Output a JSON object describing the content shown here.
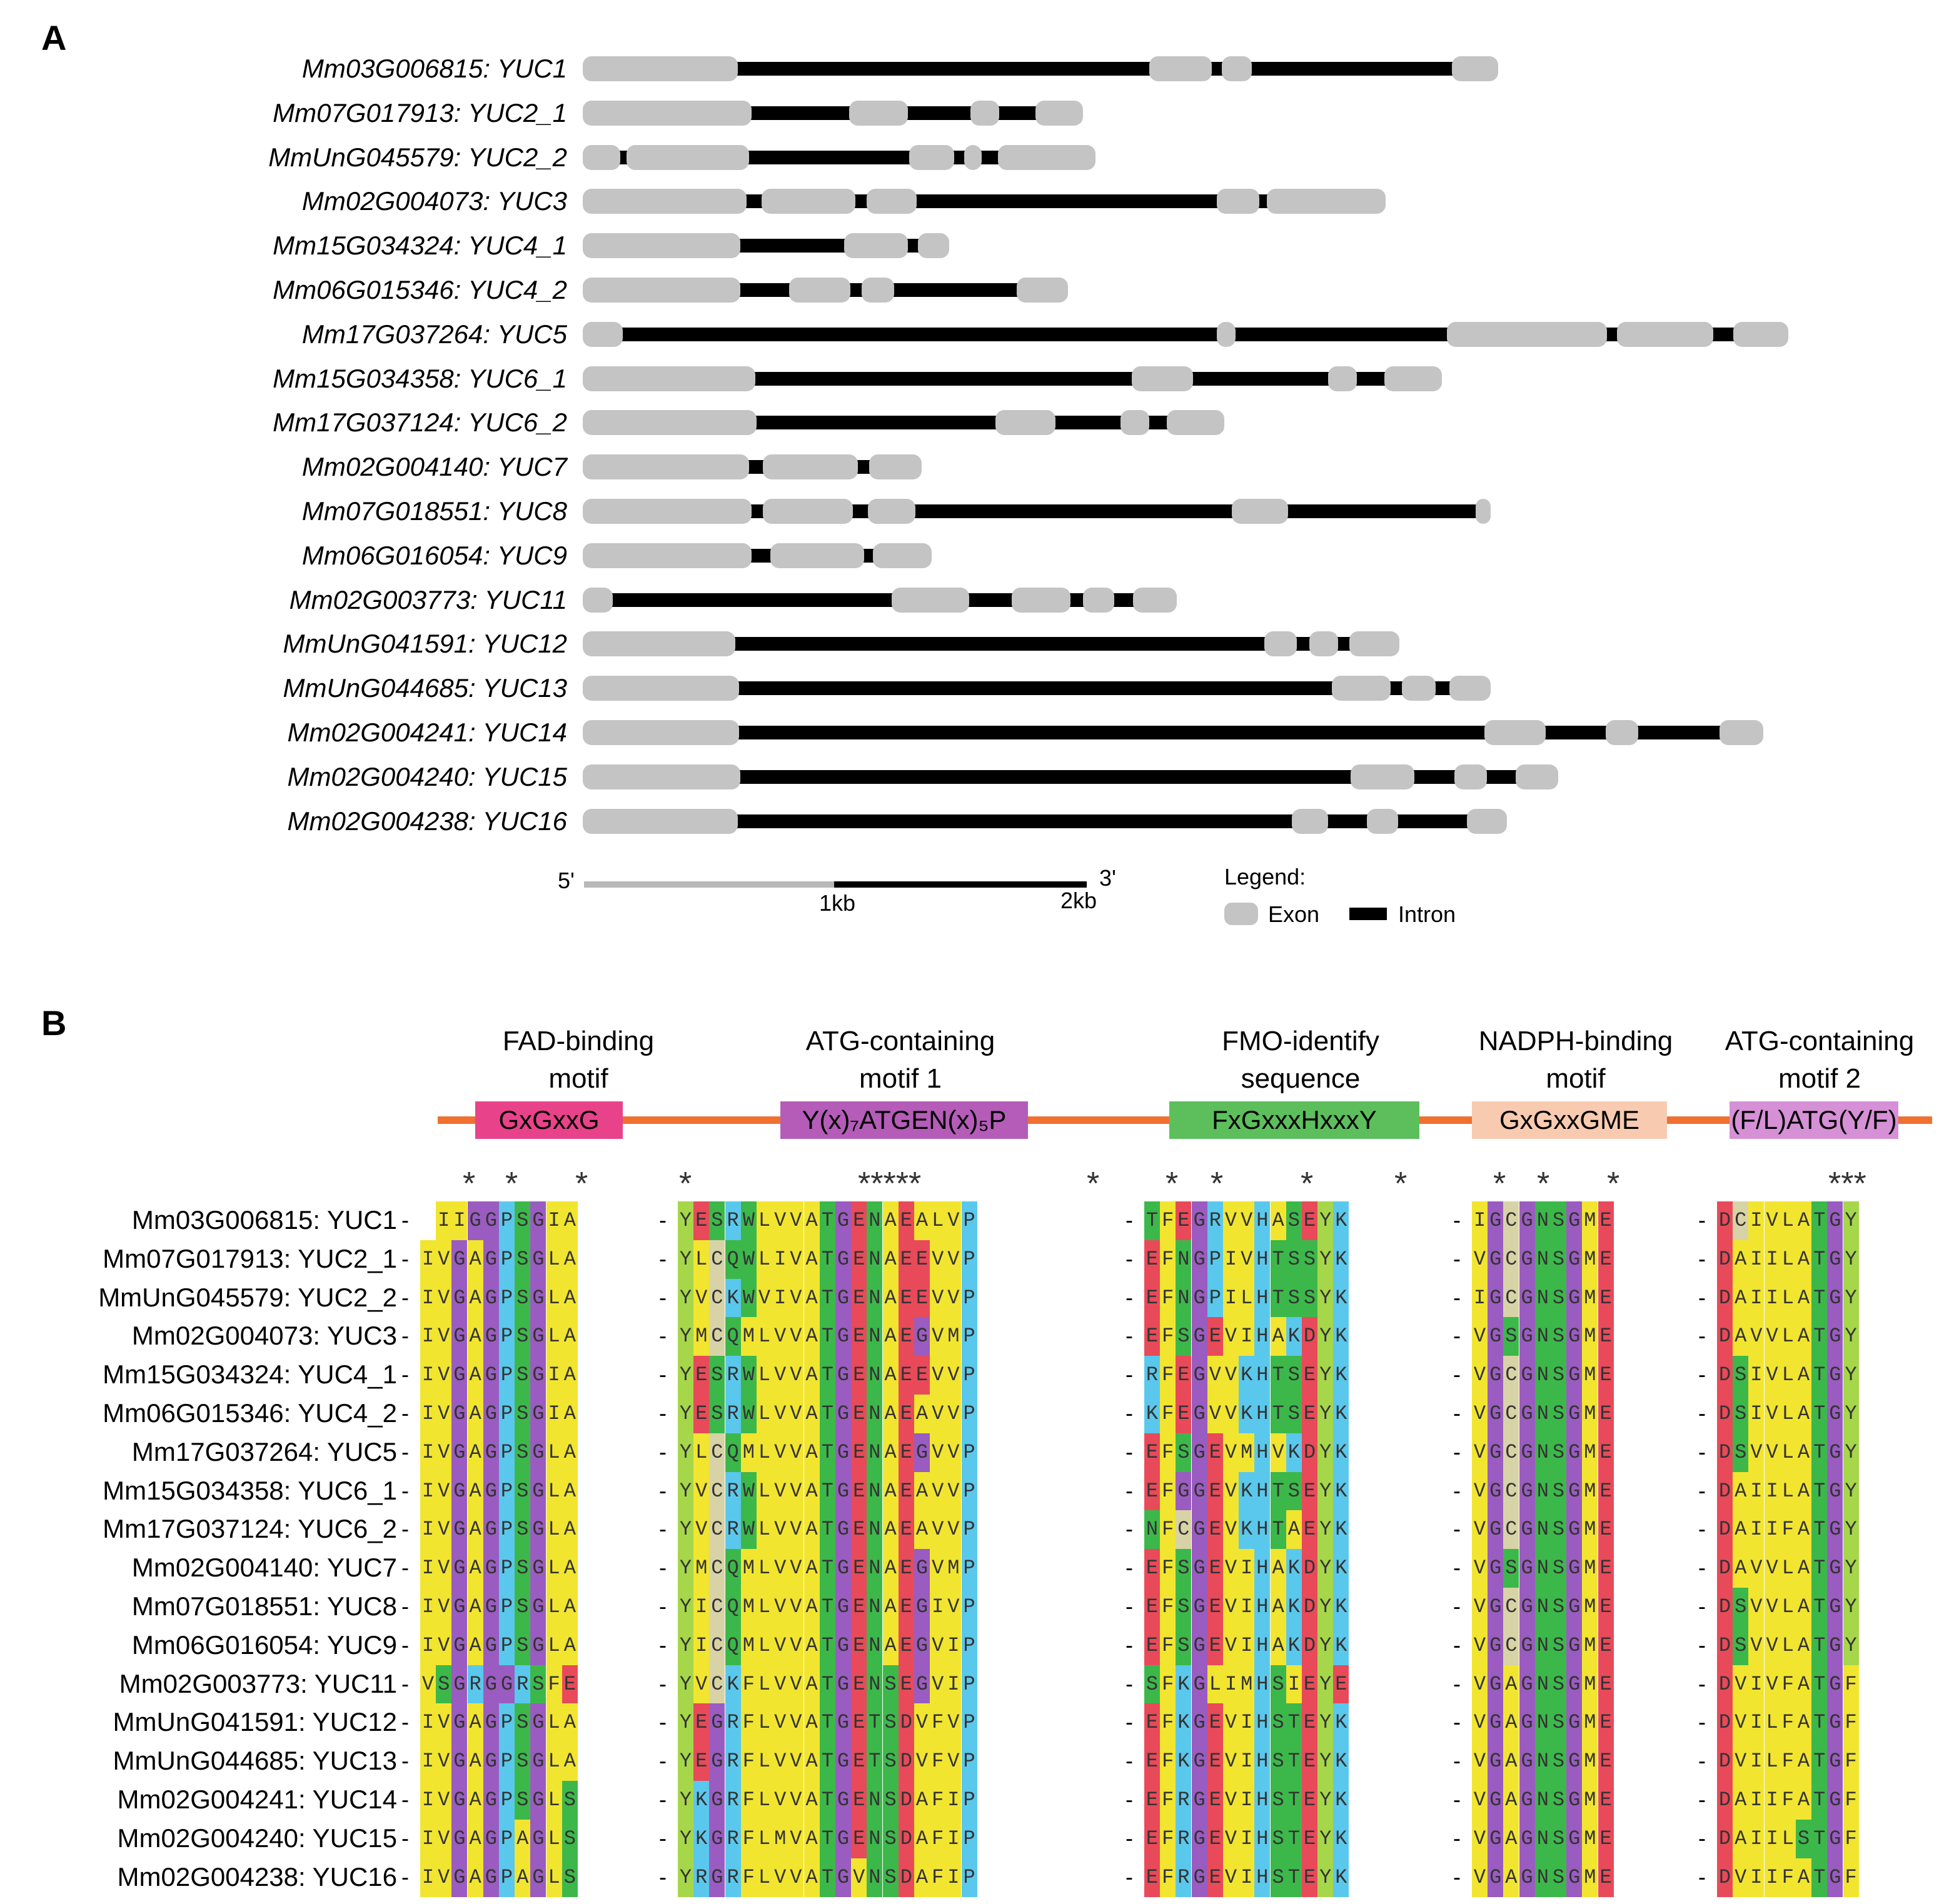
{
  "panel_a": {
    "label": "A",
    "genes": [
      {
        "name": "Mm03G006815: YUC1",
        "segments": [
          [
            "e",
            0,
            248
          ],
          [
            "i",
            248,
            906
          ],
          [
            "e",
            906,
            1006
          ],
          [
            "i",
            1006,
            1022
          ],
          [
            "e",
            1022,
            1070
          ],
          [
            "i",
            1070,
            1390
          ],
          [
            "e",
            1390,
            1464
          ]
        ]
      },
      {
        "name": "Mm07G017913: YUC2_1",
        "segments": [
          [
            "e",
            0,
            270
          ],
          [
            "i",
            270,
            426
          ],
          [
            "e",
            426,
            520
          ],
          [
            "i",
            520,
            620
          ],
          [
            "e",
            620,
            666
          ],
          [
            "i",
            666,
            724
          ],
          [
            "e",
            724,
            800
          ]
        ]
      },
      {
        "name": "MmUnG045579: YUC2_2",
        "segments": [
          [
            "e",
            0,
            60
          ],
          [
            "i",
            60,
            70
          ],
          [
            "e",
            70,
            266
          ],
          [
            "i",
            266,
            522
          ],
          [
            "e",
            522,
            594
          ],
          [
            "i",
            594,
            610
          ],
          [
            "e",
            610,
            638
          ],
          [
            "i",
            638,
            664
          ],
          [
            "e",
            664,
            820
          ]
        ]
      },
      {
        "name": "Mm02G004073: YUC3",
        "segments": [
          [
            "e",
            0,
            262
          ],
          [
            "i",
            262,
            286
          ],
          [
            "e",
            286,
            436
          ],
          [
            "i",
            436,
            454
          ],
          [
            "e",
            454,
            534
          ],
          [
            "i",
            534,
            1014
          ],
          [
            "e",
            1014,
            1082
          ],
          [
            "i",
            1082,
            1094
          ],
          [
            "e",
            1094,
            1284
          ]
        ]
      },
      {
        "name": "Mm15G034324: YUC4_1",
        "segments": [
          [
            "e",
            0,
            252
          ],
          [
            "i",
            252,
            418
          ],
          [
            "e",
            418,
            520
          ],
          [
            "i",
            520,
            536
          ],
          [
            "e",
            536,
            586
          ]
        ]
      },
      {
        "name": "Mm06G015346: YUC4_2",
        "segments": [
          [
            "e",
            0,
            252
          ],
          [
            "i",
            252,
            330
          ],
          [
            "e",
            330,
            428
          ],
          [
            "i",
            428,
            446
          ],
          [
            "e",
            446,
            498
          ],
          [
            "i",
            498,
            694
          ],
          [
            "e",
            694,
            776
          ]
        ]
      },
      {
        "name": "Mm17G037264: YUC5",
        "segments": [
          [
            "e",
            0,
            64
          ],
          [
            "i",
            64,
            1014
          ],
          [
            "e",
            1014,
            1044
          ],
          [
            "i",
            1044,
            1382
          ],
          [
            "e",
            1382,
            1638
          ],
          [
            "i",
            1638,
            1654
          ],
          [
            "e",
            1654,
            1808
          ],
          [
            "i",
            1808,
            1840
          ],
          [
            "e",
            1840,
            1928
          ]
        ]
      },
      {
        "name": "Mm15G034358: YUC6_1",
        "segments": [
          [
            "e",
            0,
            276
          ],
          [
            "i",
            276,
            878
          ],
          [
            "e",
            878,
            976
          ],
          [
            "i",
            976,
            1192
          ],
          [
            "e",
            1192,
            1238
          ],
          [
            "i",
            1238,
            1282
          ],
          [
            "e",
            1282,
            1374
          ]
        ]
      },
      {
        "name": "Mm17G037124: YUC6_2",
        "segments": [
          [
            "e",
            0,
            278
          ],
          [
            "i",
            278,
            660
          ],
          [
            "e",
            660,
            756
          ],
          [
            "i",
            756,
            860
          ],
          [
            "e",
            860,
            906
          ],
          [
            "i",
            906,
            934
          ],
          [
            "e",
            934,
            1026
          ]
        ]
      },
      {
        "name": "Mm02G004140: YUC7",
        "segments": [
          [
            "e",
            0,
            266
          ],
          [
            "i",
            266,
            288
          ],
          [
            "e",
            288,
            440
          ],
          [
            "i",
            440,
            458
          ],
          [
            "e",
            458,
            542
          ]
        ]
      },
      {
        "name": "Mm07G018551: YUC8",
        "segments": [
          [
            "e",
            0,
            270
          ],
          [
            "i",
            270,
            288
          ],
          [
            "e",
            288,
            432
          ],
          [
            "i",
            432,
            456
          ],
          [
            "e",
            456,
            532
          ],
          [
            "i",
            532,
            1038
          ],
          [
            "e",
            1038,
            1128
          ],
          [
            "i",
            1128,
            1428
          ],
          [
            "e",
            1428,
            1452
          ]
        ]
      },
      {
        "name": "Mm06G016054: YUC9",
        "segments": [
          [
            "e",
            0,
            270
          ],
          [
            "i",
            270,
            300
          ],
          [
            "e",
            300,
            450
          ],
          [
            "i",
            450,
            464
          ],
          [
            "e",
            464,
            558
          ]
        ]
      },
      {
        "name": "Mm02G003773: YUC11",
        "segments": [
          [
            "e",
            0,
            48
          ],
          [
            "i",
            48,
            494
          ],
          [
            "e",
            494,
            618
          ],
          [
            "i",
            618,
            686
          ],
          [
            "e",
            686,
            780
          ],
          [
            "i",
            780,
            800
          ],
          [
            "e",
            800,
            850
          ],
          [
            "i",
            850,
            880
          ],
          [
            "e",
            880,
            950
          ]
        ]
      },
      {
        "name": "MmUnG041591: YUC12",
        "segments": [
          [
            "e",
            0,
            244
          ],
          [
            "i",
            244,
            1090
          ],
          [
            "e",
            1090,
            1142
          ],
          [
            "i",
            1142,
            1162
          ],
          [
            "e",
            1162,
            1208
          ],
          [
            "i",
            1208,
            1226
          ],
          [
            "e",
            1226,
            1306
          ]
        ]
      },
      {
        "name": "MmUnG044685: YUC13",
        "segments": [
          [
            "e",
            0,
            250
          ],
          [
            "i",
            250,
            1198
          ],
          [
            "e",
            1198,
            1292
          ],
          [
            "i",
            1292,
            1310
          ],
          [
            "e",
            1310,
            1364
          ],
          [
            "i",
            1364,
            1386
          ],
          [
            "e",
            1386,
            1452
          ]
        ]
      },
      {
        "name": "Mm02G004241: YUC14",
        "segments": [
          [
            "e",
            0,
            250
          ],
          [
            "i",
            250,
            1442
          ],
          [
            "e",
            1442,
            1540
          ],
          [
            "i",
            1540,
            1636
          ],
          [
            "e",
            1636,
            1688
          ],
          [
            "i",
            1688,
            1818
          ],
          [
            "e",
            1818,
            1888
          ]
        ]
      },
      {
        "name": "Mm02G004240: YUC15",
        "segments": [
          [
            "e",
            0,
            252
          ],
          [
            "i",
            252,
            1228
          ],
          [
            "e",
            1228,
            1330
          ],
          [
            "i",
            1330,
            1394
          ],
          [
            "e",
            1394,
            1446
          ],
          [
            "i",
            1446,
            1492
          ],
          [
            "e",
            1492,
            1560
          ]
        ]
      },
      {
        "name": "Mm02G004238: YUC16",
        "segments": [
          [
            "e",
            0,
            248
          ],
          [
            "i",
            248,
            1134
          ],
          [
            "e",
            1134,
            1192
          ],
          [
            "i",
            1192,
            1254
          ],
          [
            "e",
            1254,
            1304
          ],
          [
            "i",
            1304,
            1414
          ],
          [
            "e",
            1414,
            1478
          ]
        ]
      }
    ],
    "scale": {
      "left": "5'",
      "right": "3'",
      "tick1": "1kb",
      "tick2": "2kb"
    },
    "legend": {
      "title": "Legend:",
      "exon": "Exon",
      "intron": "Intron"
    }
  },
  "panel_b": {
    "label": "B",
    "motifs": [
      {
        "title": "FAD-binding\nmotif",
        "box": "GxGxxG",
        "color": "#e8438a"
      },
      {
        "title": "ATG-containing\nmotif 1",
        "box": "Y(x)₇ATGEN(x)₅P",
        "color": "#b45cb8"
      },
      {
        "title": "FMO-identify\nsequence",
        "box": "FxGxxxHxxxY",
        "color": "#5cbf5c"
      },
      {
        "title": "NADPH-binding\nmotif",
        "box": "GxGxxGME",
        "color": "#f8cbb0"
      },
      {
        "title": "ATG-containing\nmotif 2",
        "box": "(F/L)ATG(Y/F)",
        "color": "#d690d6"
      }
    ],
    "line_color": "#f07030",
    "stars": [
      "*",
      "*",
      "*",
      "*",
      "*****",
      "*",
      "*",
      "*",
      "*",
      "*",
      "*",
      "*",
      "*",
      "***"
    ],
    "sequences": [
      {
        "name": "Mm03G006815: YUC1",
        "blocks": [
          "IIGGPSGIA",
          "YESRWLVVATGENAEALVP",
          "TFEGRVVHASEYK",
          "IGCGNSGME",
          "DCIVLATGY"
        ]
      },
      {
        "name": "Mm07G017913: YUC2_1",
        "blocks": [
          "IVGAGPSGLA",
          "YLCQWLIVATGENAEEVVP",
          "EFNGPIVHTSSYK",
          "VGCGNSGME",
          "DAIILATGY"
        ]
      },
      {
        "name": "MmUnG045579: YUC2_2",
        "blocks": [
          "IVGAGPSGLA",
          "YVCKWVIVATGENAEEVVP",
          "EFNGPILHTSSYK",
          "IGCGNSGME",
          "DAIILATGY"
        ]
      },
      {
        "name": "Mm02G004073: YUC3",
        "blocks": [
          "IVGAGPSGLA",
          "YMCQMLVVATGENAEGVMP",
          "EFSGEVIHAKDYK",
          "VGSGNSGME",
          "DAVVLATGY"
        ]
      },
      {
        "name": "Mm15G034324: YUC4_1",
        "blocks": [
          "IVGAGPSGIA",
          "YESRWLVVATGENAEEVVP",
          "RFEGVVKHTSEYK",
          "VGCGNSGME",
          "DSIVLATGY"
        ]
      },
      {
        "name": "Mm06G015346: YUC4_2",
        "blocks": [
          "IVGAGPSGIA",
          "YESRWLVVATGENAEAVVP",
          "KFEGVVKHTSEYK",
          "VGCGNSGME",
          "DSIVLATGY"
        ]
      },
      {
        "name": "Mm17G037264: YUC5",
        "blocks": [
          "IVGAGPSGLA",
          "YLCQMLVVATGENAEGVVP",
          "EFSGEVMHVKDYK",
          "VGCGNSGME",
          "DSVVLATGY"
        ]
      },
      {
        "name": "Mm15G034358: YUC6_1",
        "blocks": [
          "IVGAGPSGLA",
          "YVCRWLVVATGENAEAVVP",
          "EFGGEVKHTSEYK",
          "VGCGNSGME",
          "DAIILATGY"
        ]
      },
      {
        "name": "Mm17G037124: YUC6_2",
        "blocks": [
          "IVGAGPSGLA",
          "YVCRWLVVATGENAEAVVP",
          "NFCGEVKHTAEYK",
          "VGCGNSGME",
          "DAIIFATGY"
        ]
      },
      {
        "name": "Mm02G004140: YUC7",
        "blocks": [
          "IVGAGPSGLA",
          "YMCQMLVVATGENAEGVMP",
          "EFSGEVIHAKDYK",
          "VGSGNSGME",
          "DAVVLATGY"
        ]
      },
      {
        "name": "Mm07G018551: YUC8",
        "blocks": [
          "IVGAGPSGLA",
          "YICQMLVVATGENAEGIVP",
          "EFSGEVIHAKDYK",
          "VGCGNSGME",
          "DSVVLATGY"
        ]
      },
      {
        "name": "Mm06G016054: YUC9",
        "blocks": [
          "IVGAGPSGLA",
          "YICQMLVVATGENAEGVIP",
          "EFSGEVIHAKDYK",
          "VGCGNSGME",
          "DSVVLATGY"
        ]
      },
      {
        "name": "Mm02G003773: YUC11",
        "blocks": [
          "VSGRGGRSFE",
          "YVCKFLVVATGENSEGVIP",
          "SFKGLIMHSIEYE",
          "VGAGNSGME",
          "DVIVFATGF"
        ]
      },
      {
        "name": "MmUnG041591: YUC12",
        "blocks": [
          "IVGAGPSGLA",
          "YEGRFLVVATGETSDVFVP",
          "EFKGEVIHSTEYK",
          "VGAGNSGME",
          "DVILFATGF"
        ]
      },
      {
        "name": "MmUnG044685: YUC13",
        "blocks": [
          "IVGAGPSGLA",
          "YEGRFLVVATGETSDVFVP",
          "EFKGEVIHSTEYK",
          "VGAGNSGME",
          "DVILFATGF"
        ]
      },
      {
        "name": "Mm02G004241: YUC14",
        "blocks": [
          "IVGAGPSGLS",
          "YKGRFLVVATGENSDAFIP",
          "EFRGEVIHSTEYK",
          "VGAGNSGME",
          "DAIIFATGF"
        ]
      },
      {
        "name": "Mm02G004240: YUC15",
        "blocks": [
          "IVGAGPAGLS",
          "YKGRFLMVATGENSDAFIP",
          "EFRGEVIHSTEYK",
          "VGAGNSGME",
          "DAIILSTGF"
        ]
      },
      {
        "name": "Mm02G004238: YUC16",
        "blocks": [
          "IVGAGPAGLS",
          "YRGRFLVVATGVNSDAFIP",
          "EFRGEVIHSTEYK",
          "VGAGNSGME",
          "DVIIFATGF"
        ]
      }
    ],
    "aa_colors": {
      "hydrophobic": "#f2e530",
      "G": "#9a5cc0",
      "P": "#5ac8ec",
      "S": "#3cb84a",
      "T": "#3cb84a",
      "N": "#3cb84a",
      "Q": "#3cb84a",
      "C": "#d8d3a6",
      "E": "#e84a5a",
      "D": "#e84a5a",
      "K": "#5ac8ec",
      "R": "#5ac8ec",
      "H": "#5ac8ec",
      "Y": "#a6d64a",
      "W": "#3cb84a"
    }
  }
}
